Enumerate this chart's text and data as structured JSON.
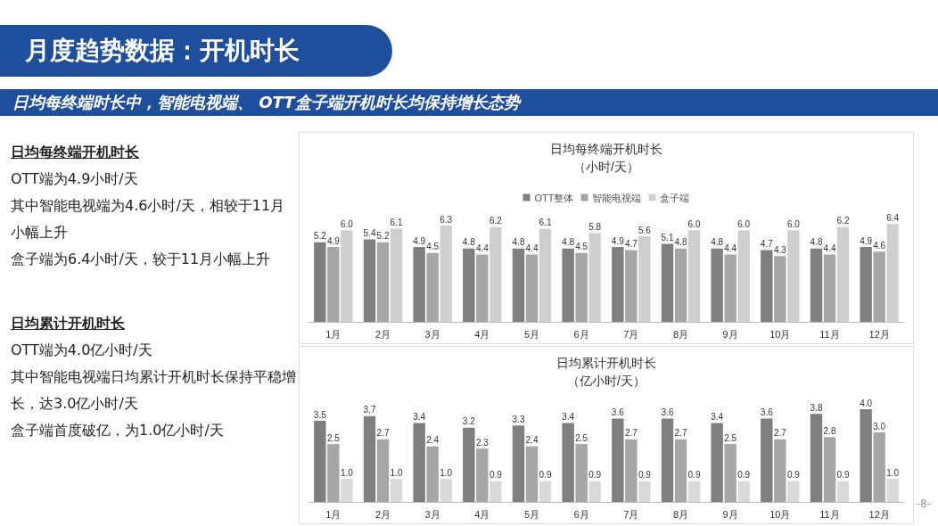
{
  "chart_data": [
    {
      "type": "other",
      "title": "月度趋势数据：开机时长",
      "subtitle": "日均每终端时长中，智能电视端、 OTT盒子端开机时长均保持增长态势",
      "annotations": [
        "日均每终端开机时长",
        "OTT端为4.9小时/天",
        "其中智能电视端为4.6小时/天，相较于11月小幅上升",
        "盒子端为6.4小时/天，较于11月小幅上升",
        "日均累计开机时长",
        "OTT端为4.0亿小时/天",
        "其中智能电视端日均累计开机时长保持平稳增长，达3.0亿小时/天",
        "盒子端首度破亿，为1.0亿小时/天",
        "-8-"
      ]
    },
    {
      "type": "bar",
      "title": "日均每终端开机时长",
      "subtitle": "（小时/天）",
      "categories": [
        "1月",
        "2月",
        "3月",
        "4月",
        "5月",
        "6月",
        "7月",
        "8月",
        "9月",
        "10月",
        "11月",
        "12月"
      ],
      "legend": "top",
      "series": [
        {
          "name": "OTT整体",
          "color": "#7f7f7f",
          "values": [
            5.2,
            5.4,
            4.9,
            4.8,
            4.8,
            4.8,
            4.9,
            5.1,
            4.8,
            4.7,
            4.8,
            4.9
          ],
          "value_labels": [
            "5.2",
            "5.4",
            "4.9",
            "4.8",
            "4.8",
            "4.8",
            "4.9",
            "5.1",
            "4.8",
            "4.7",
            "4.8",
            "4.9"
          ]
        },
        {
          "name": "智能电视端",
          "color": "#a6a6a6",
          "values": [
            4.9,
            5.2,
            4.5,
            4.4,
            4.4,
            4.5,
            4.7,
            4.8,
            4.4,
            4.3,
            4.4,
            4.6
          ],
          "value_labels": [
            "4.9",
            "5.2",
            "4.5",
            "4.4",
            "4.4",
            "4.5",
            "4.7",
            "4.8",
            "4.4",
            "4.3",
            "4.4",
            "4.6"
          ]
        },
        {
          "name": "盒子端",
          "color": "#cfcfcf",
          "values": [
            6.0,
            6.1,
            6.3,
            6.2,
            6.1,
            5.8,
            5.6,
            6.0,
            6.0,
            6.0,
            6.2,
            6.4
          ],
          "value_labels": [
            "6.0",
            "6.1",
            "6.3",
            "6.2",
            "6.1",
            "5.8",
            "5.6",
            "6.0",
            "6.0",
            "6.0",
            "6.2",
            "6.4"
          ]
        }
      ]
    },
    {
      "type": "bar",
      "title": "日均累计开机时长",
      "subtitle": "（亿小时/天）",
      "categories": [
        "1月",
        "2月",
        "3月",
        "4月",
        "5月",
        "6月",
        "7月",
        "8月",
        "9月",
        "10月",
        "11月",
        "12月"
      ],
      "series": [
        {
          "color": "#7f7f7f",
          "values": [
            3.5,
            3.7,
            3.4,
            3.2,
            3.3,
            3.4,
            3.6,
            3.6,
            3.4,
            3.6,
            3.8,
            4.0
          ],
          "value_labels": [
            "3.5",
            "3.7",
            "3.4",
            "3.2",
            "3.3",
            "3.4",
            "3.6",
            "3.6",
            "3.4",
            "3.6",
            "3.8",
            "4.0"
          ]
        },
        {
          "color": "#a6a6a6",
          "values": [
            2.5,
            2.7,
            2.4,
            2.3,
            2.4,
            2.5,
            2.7,
            2.7,
            2.5,
            2.7,
            2.8,
            3.0
          ],
          "value_labels": [
            "2.5",
            "2.7",
            "2.4",
            "2.3",
            "2.4",
            "2.5",
            "2.7",
            "2.7",
            "2.5",
            "2.7",
            "2.8",
            "3.0"
          ]
        },
        {
          "color": "#d9d9d9",
          "values": [
            1.0,
            1.0,
            1.0,
            0.9,
            0.9,
            0.9,
            0.9,
            0.9,
            0.9,
            0.9,
            0.9,
            1.0
          ],
          "value_labels": [
            "1.0",
            "1.0",
            "1.0",
            "0.9",
            "0.9",
            "0.9",
            "0.9",
            "0.9",
            "0.9",
            "0.9",
            "0.9",
            "1.0"
          ]
        }
      ]
    }
  ]
}
